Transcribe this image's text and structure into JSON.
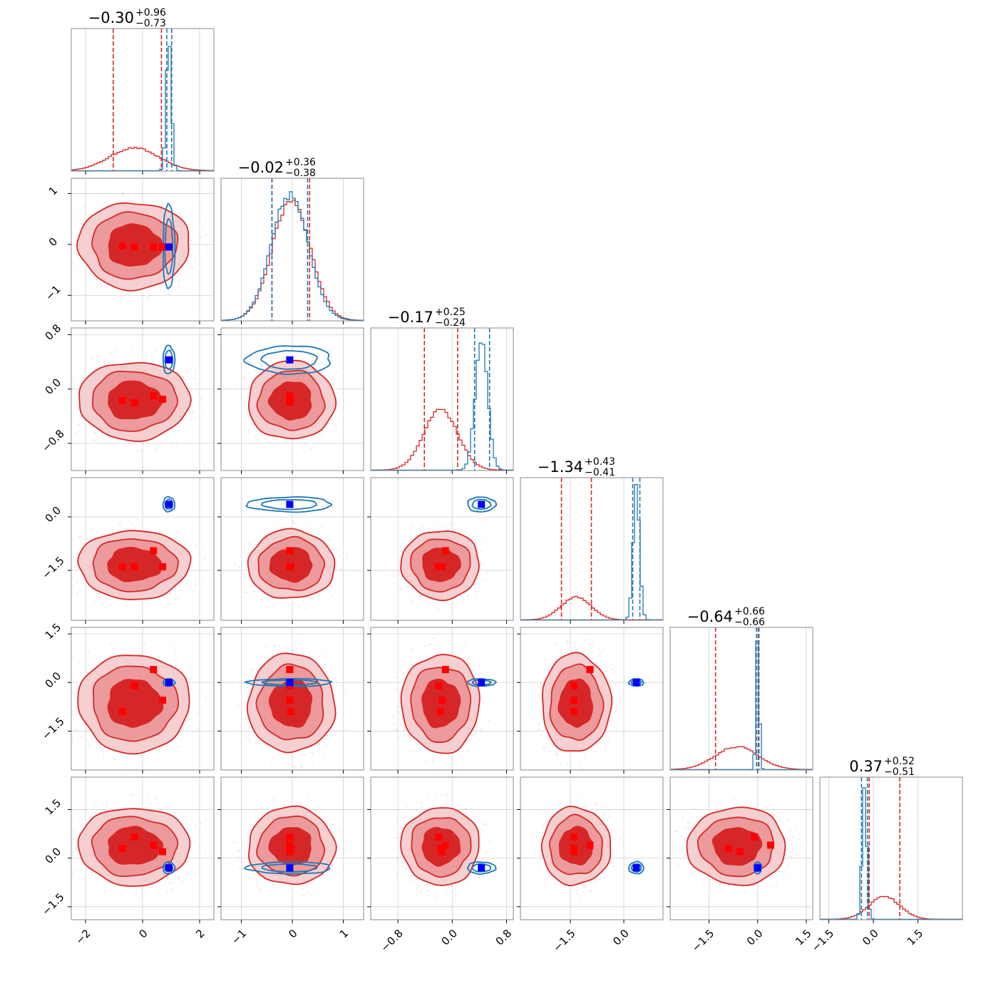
{
  "chart_data": {
    "type": "corner",
    "parameters": 6,
    "colors": {
      "red": "#d62728",
      "blue": "#1f77b4",
      "red_fill_mid": "#ec9a9b",
      "red_fill_outer": "#f6cfd0",
      "red_marker": "#ff0000",
      "blue_marker": "#0000ff"
    },
    "titles": [
      {
        "median": "−0.30",
        "plus": "+0.96",
        "minus": "−0.73"
      },
      {
        "median": "−0.02",
        "plus": "+0.36",
        "minus": "−0.38"
      },
      {
        "median": "−0.17",
        "plus": "+0.25",
        "minus": "−0.24"
      },
      {
        "median": "−1.34",
        "plus": "+0.43",
        "minus": "−0.41"
      },
      {
        "median": "−0.64",
        "plus": "+0.66",
        "minus": "−0.66"
      },
      {
        "median": "0.37",
        "plus": "+0.52",
        "minus": "−0.51"
      }
    ],
    "axes": [
      {
        "range": [
          -2.5,
          2.5
        ],
        "ticks": [
          -2,
          0,
          2
        ],
        "labels": [
          "−2",
          "0",
          "2"
        ]
      },
      {
        "range": [
          -1.4,
          1.4
        ],
        "ticks": [
          -1,
          0,
          1
        ],
        "labels": [
          "−1",
          "0",
          "1"
        ]
      },
      {
        "range": [
          -1.2,
          0.9
        ],
        "ticks": [
          -0.8,
          0.0,
          0.8
        ],
        "labels": [
          "−0.8",
          "0.0",
          "0.8"
        ]
      },
      {
        "range": [
          -2.9,
          1.1
        ],
        "ticks": [
          -1.5,
          0.0
        ],
        "labels": [
          "−1.5",
          "0.0"
        ]
      },
      {
        "range": [
          -2.7,
          1.7
        ],
        "ticks": [
          -1.5,
          0.0,
          1.5
        ],
        "labels": [
          "−1.5",
          "0.0",
          "1.5"
        ]
      },
      {
        "range": [
          -1.8,
          3.0
        ],
        "ticks": [
          -1.5,
          0.0,
          1.5
        ],
        "labels": [
          "−1.5",
          "0.0",
          "1.5"
        ]
      }
    ],
    "y_axes": [
      null,
      {
        "range": [
          -1.5,
          1.3
        ],
        "ticks": [
          -1,
          0,
          1
        ],
        "labels": [
          "−1",
          "0",
          "1"
        ]
      },
      {
        "range": [
          -1.2,
          0.9
        ],
        "ticks": [
          -0.8,
          0.0,
          0.8
        ],
        "labels": [
          "−0.8",
          "0.0",
          "0.8"
        ]
      },
      {
        "range": [
          -2.9,
          1.1
        ],
        "ticks": [
          -1.5,
          0.0
        ],
        "labels": [
          "−1.5",
          "0.0"
        ]
      },
      {
        "range": [
          -2.7,
          1.7
        ],
        "ticks": [
          -1.5,
          0.0,
          1.5
        ],
        "labels": [
          "−1.5",
          "0.0",
          "1.5"
        ]
      },
      {
        "range": [
          -1.9,
          2.5
        ],
        "ticks": [
          -1.5,
          0.0,
          1.5
        ],
        "labels": [
          "−1.5",
          "0.0",
          "1.5"
        ]
      }
    ],
    "red_posterior": {
      "center": [
        -0.3,
        -0.02,
        -0.17,
        -1.34,
        -0.64,
        0.37
      ],
      "sigma": [
        0.85,
        0.37,
        0.25,
        0.42,
        0.66,
        0.52
      ],
      "quantile_lines": [
        [
          -1.03,
          0.66
        ],
        [
          -0.4,
          0.34
        ],
        [
          -0.41,
          0.08
        ],
        [
          -1.75,
          -0.91
        ],
        [
          -1.3,
          0.02
        ],
        [
          -0.14,
          0.89
        ]
      ]
    },
    "blue_posterior": {
      "center": [
        0.92,
        -0.05,
        0.43,
        0.35,
        0.0,
        -0.3
      ],
      "sigma": [
        0.09,
        0.36,
        0.09,
        0.09,
        0.05,
        0.08
      ],
      "quantile_lines": [
        [
          0.85,
          1.02
        ],
        [
          -0.4,
          0.3
        ],
        [
          0.33,
          0.55
        ],
        [
          0.25,
          0.45
        ],
        [
          -0.04,
          0.04
        ],
        [
          -0.4,
          -0.2
        ]
      ]
    },
    "blue_truth": [
      0.92,
      -0.05,
      0.43,
      0.35,
      0.0,
      -0.3
    ],
    "red_markers": [
      [
        -0.71,
        -0.03,
        -0.17,
        -1.4,
        -0.9,
        0.3
      ],
      [
        -0.28,
        -0.05,
        -0.2,
        -1.4,
        -0.1,
        0.65
      ],
      [
        0.38,
        -0.05,
        -0.1,
        -0.95,
        0.4,
        0.4
      ],
      [
        0.7,
        -0.05,
        -0.15,
        -1.4,
        -0.55,
        0.2
      ]
    ]
  }
}
